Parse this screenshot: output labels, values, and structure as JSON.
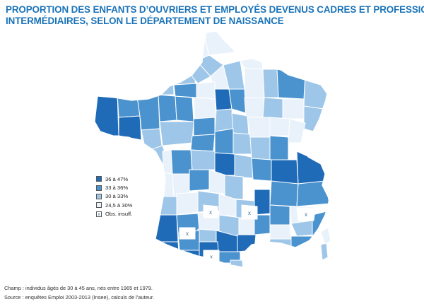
{
  "title": {
    "line1": "PROPORTION DES ENFANTS D’OUVRIERS ET EMPLOYÉS DEVENUS CADRES ET PROFESSIONS",
    "line2": "INTERMÉDIAIRES, SELON LE DÉPARTEMENT DE NAISSANCE"
  },
  "colors": {
    "c1": "#1f6bb8",
    "c2": "#4b93cf",
    "c3": "#9ec6e8",
    "c4": "#e9f2fb",
    "insuff": "#ffffff",
    "border": "#ffffff",
    "title": "#1a73b8"
  },
  "legend": {
    "items": [
      {
        "key": "c1",
        "label": "36 à 47%"
      },
      {
        "key": "c2",
        "label": "33 à 36%"
      },
      {
        "key": "c3",
        "label": "30 à 33%"
      },
      {
        "key": "c4",
        "label": "24,5 à 30%"
      },
      {
        "key": "insuff",
        "label": "Obs. insuff.",
        "mark": "x"
      }
    ]
  },
  "footer": {
    "champ": "Champ : individus âgés de 30 à 45 ans, nés entre 1965 et 1979.",
    "source": "Source : enquêtes Emploi 2003-2013 (Insee), calculs de l’auteur."
  }
}
